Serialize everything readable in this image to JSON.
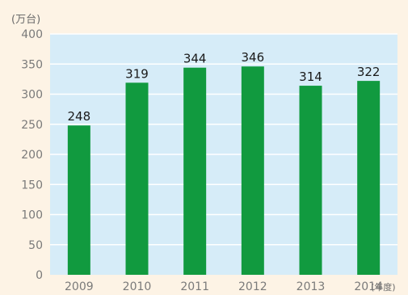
{
  "chart_data": {
    "type": "bar",
    "y_unit": "(万台)",
    "x_unit": "(年度)",
    "categories": [
      "2009",
      "2010",
      "2011",
      "2012",
      "2013",
      "2014"
    ],
    "values": [
      248,
      319,
      344,
      346,
      314,
      322
    ],
    "value_labels": [
      "248",
      "319",
      "344",
      "346",
      "314",
      "322"
    ],
    "ylim": [
      0,
      400
    ],
    "yticks": [
      0,
      50,
      100,
      150,
      200,
      250,
      300,
      350,
      400
    ],
    "ytick_labels": [
      "0",
      "50",
      "100",
      "150",
      "200",
      "250",
      "300",
      "350",
      "400"
    ],
    "grid": true,
    "colors": {
      "bar": "#119a3f",
      "plot_background": "#d6ecf8",
      "page_background": "#fdf3e5",
      "gridline": "#ffffff",
      "axis_text": "#7a7a7a",
      "value_text": "#1a1a1a"
    }
  }
}
